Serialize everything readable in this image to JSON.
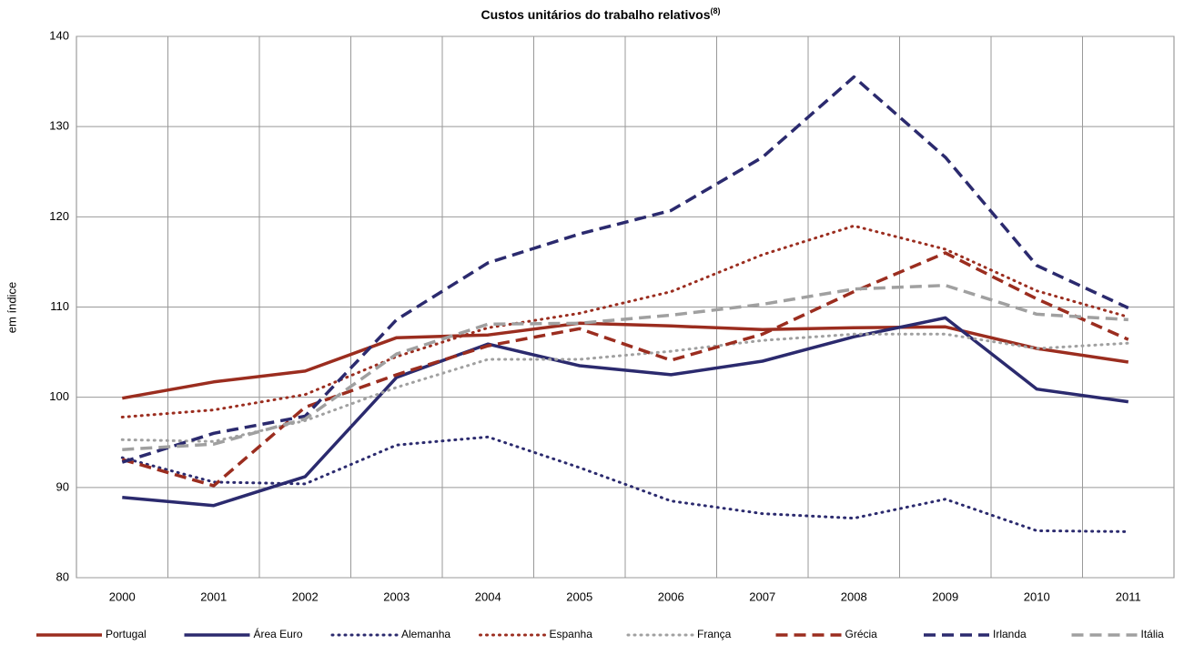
{
  "chart_data": {
    "type": "line",
    "title": "Custos unitários do trabalho relativos",
    "title_superscript": "(8)",
    "y_label": "em índice",
    "categories": [
      "2000",
      "2001",
      "2002",
      "2003",
      "2004",
      "2005",
      "2006",
      "2007",
      "2008",
      "2009",
      "2010",
      "2011"
    ],
    "ylim": [
      80,
      140
    ],
    "yticks": [
      80,
      90,
      100,
      110,
      120,
      130,
      140
    ],
    "grid": true,
    "legend": "bottom",
    "series": [
      {
        "name": "Portugal",
        "color": "#9b2d1f",
        "dash": "solid",
        "values": [
          99.9,
          101.7,
          102.9,
          106.6,
          106.9,
          108.2,
          107.9,
          107.5,
          107.7,
          107.8,
          105.4,
          103.9
        ]
      },
      {
        "name": "Área Euro",
        "color": "#2b2a6e",
        "dash": "solid",
        "values": [
          88.9,
          88.0,
          91.2,
          102.2,
          105.9,
          103.5,
          102.5,
          104.0,
          106.7,
          108.8,
          100.9,
          99.5
        ]
      },
      {
        "name": "Alemanha",
        "color": "#2b2a6e",
        "dash": "dotted",
        "values": [
          93.3,
          90.6,
          90.4,
          94.7,
          95.6,
          92.2,
          88.5,
          87.1,
          86.6,
          88.7,
          85.2,
          85.1
        ]
      },
      {
        "name": "Espanha",
        "color": "#9b2d1f",
        "dash": "dotted",
        "values": [
          97.8,
          98.6,
          100.3,
          104.5,
          107.7,
          109.3,
          111.7,
          115.8,
          119.0,
          116.4,
          111.8,
          108.9
        ]
      },
      {
        "name": "França",
        "color": "#a0a0a0",
        "dash": "dotted",
        "values": [
          95.3,
          95.1,
          97.4,
          101.1,
          104.2,
          104.2,
          105.1,
          106.3,
          107.0,
          107.0,
          105.4,
          106.0
        ]
      },
      {
        "name": "Grécia",
        "color": "#9b2d1f",
        "dash": "dashed",
        "values": [
          93.1,
          90.2,
          98.9,
          102.5,
          105.7,
          107.6,
          104.1,
          107.0,
          111.7,
          116.0,
          110.9,
          106.4
        ]
      },
      {
        "name": "Irlanda",
        "color": "#2b2a6e",
        "dash": "dashed",
        "values": [
          92.8,
          96.0,
          97.9,
          108.6,
          114.9,
          118.1,
          120.7,
          126.6,
          135.5,
          126.6,
          114.6,
          109.9
        ]
      },
      {
        "name": "Itália",
        "color": "#a0a0a0",
        "dash": "dashed",
        "values": [
          94.2,
          94.8,
          97.6,
          104.8,
          108.1,
          108.2,
          109.1,
          110.3,
          112.0,
          112.4,
          109.2,
          108.6
        ]
      }
    ]
  }
}
